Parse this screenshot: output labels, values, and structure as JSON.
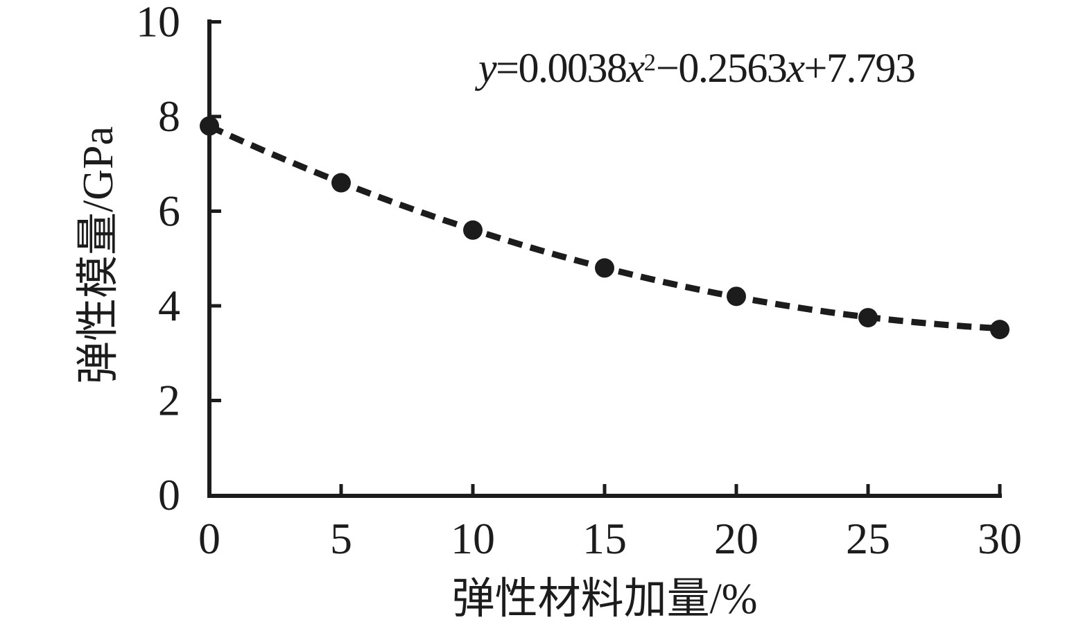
{
  "page": {
    "background": "#ffffff",
    "ink_color": "#1c1c1c"
  },
  "chart_data": {
    "type": "scatter",
    "title": "",
    "xlabel": "弹性材料加量/%",
    "ylabel": "弹性模量/GPa",
    "x": [
      0,
      5,
      10,
      15,
      20,
      25,
      30
    ],
    "values": [
      7.8,
      6.6,
      5.6,
      4.8,
      4.2,
      3.75,
      3.5
    ],
    "x_ticks": [
      0,
      5,
      10,
      15,
      20,
      25,
      30
    ],
    "y_ticks": [
      0,
      2,
      4,
      6,
      8,
      10
    ],
    "xlim": [
      0,
      30
    ],
    "ylim": [
      0,
      10
    ],
    "grid": false,
    "legend": "none",
    "marker": "filled-circle",
    "marker_color": "#1c1c1c",
    "line_color": "#1c1c1c",
    "trendline": {
      "type": "quadratic",
      "a": 0.0038,
      "b": -0.2563,
      "c": 7.793,
      "style": "dashed"
    },
    "equation": "y=0.0038x²−0.2563x+7.793",
    "equation_segments": [
      {
        "text": "y",
        "italic": true,
        "sup": false
      },
      {
        "text": "=0.0038",
        "italic": false,
        "sup": false
      },
      {
        "text": "x",
        "italic": true,
        "sup": false
      },
      {
        "text": "2",
        "italic": false,
        "sup": true
      },
      {
        "text": "−0.2563",
        "italic": false,
        "sup": false
      },
      {
        "text": "x",
        "italic": true,
        "sup": false
      },
      {
        "text": "+7.793",
        "italic": false,
        "sup": false
      }
    ]
  }
}
